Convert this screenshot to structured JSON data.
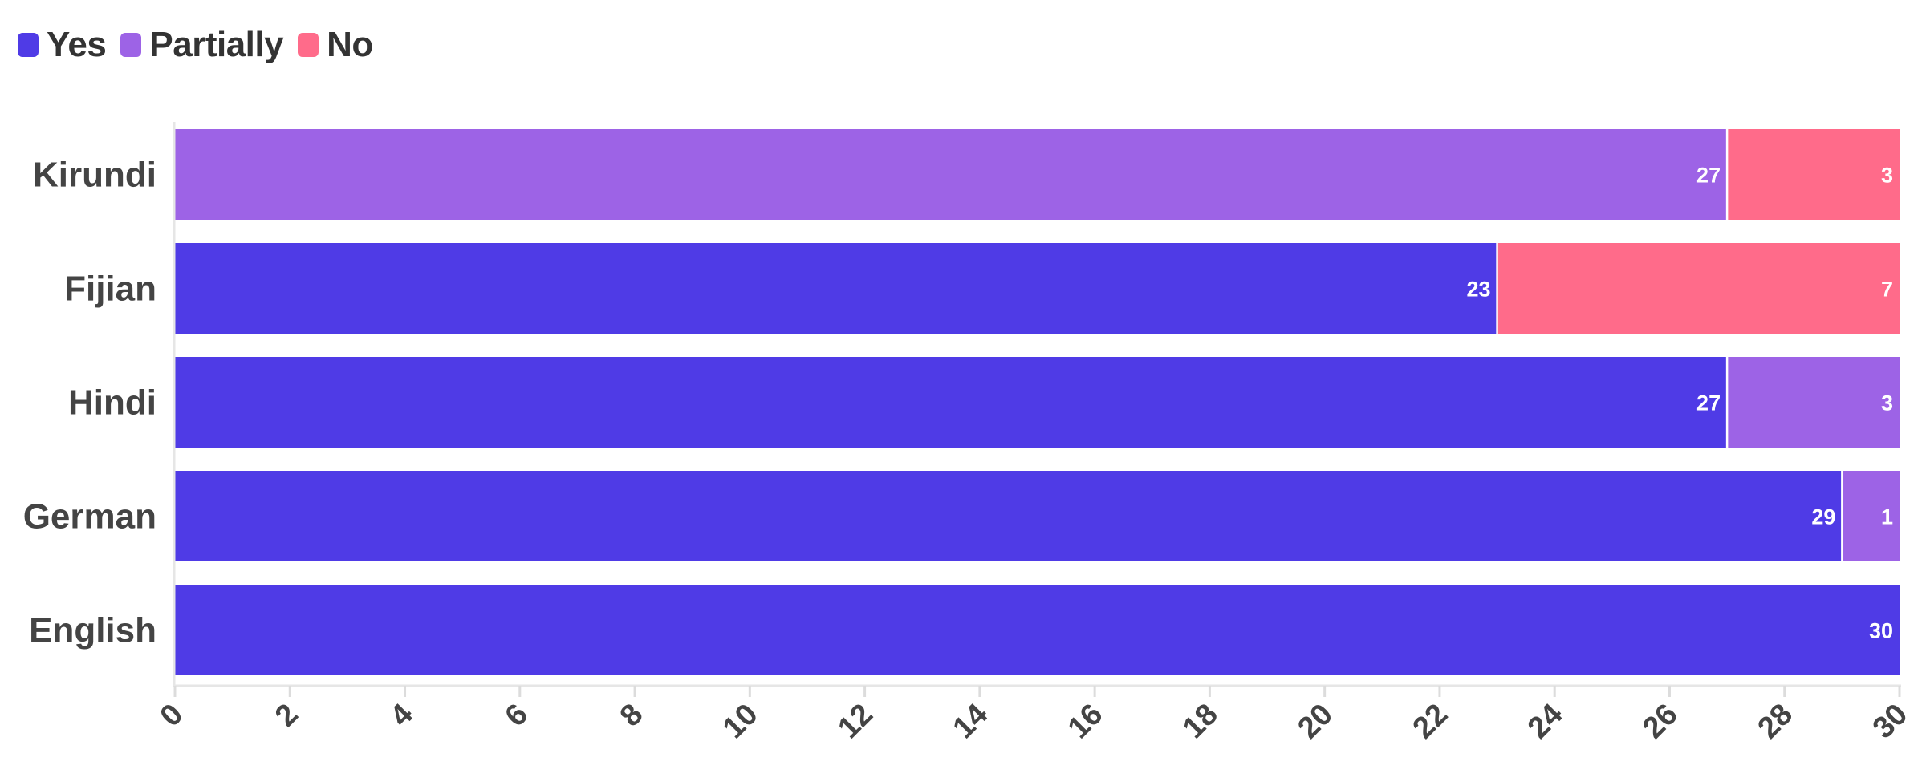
{
  "chart_data": {
    "type": "bar",
    "orientation": "horizontal",
    "stacked": true,
    "categories": [
      "Kirundi",
      "Fijian",
      "Hindi",
      "German",
      "English"
    ],
    "series": [
      {
        "name": "Yes",
        "color": "#4f3be6",
        "values": [
          0,
          23,
          27,
          29,
          30
        ]
      },
      {
        "name": "Partially",
        "color": "#9d63e6",
        "values": [
          27,
          0,
          3,
          1,
          0
        ]
      },
      {
        "name": "No",
        "color": "#ff6b8a",
        "values": [
          3,
          7,
          0,
          0,
          0
        ]
      }
    ],
    "xlim": [
      0,
      30
    ],
    "xticks": [
      "0",
      "2",
      "4",
      "6",
      "8",
      "10",
      "12",
      "14",
      "16",
      "18",
      "20",
      "22",
      "24",
      "26",
      "28",
      "30"
    ],
    "legend_position": "top-left",
    "grid": false
  }
}
